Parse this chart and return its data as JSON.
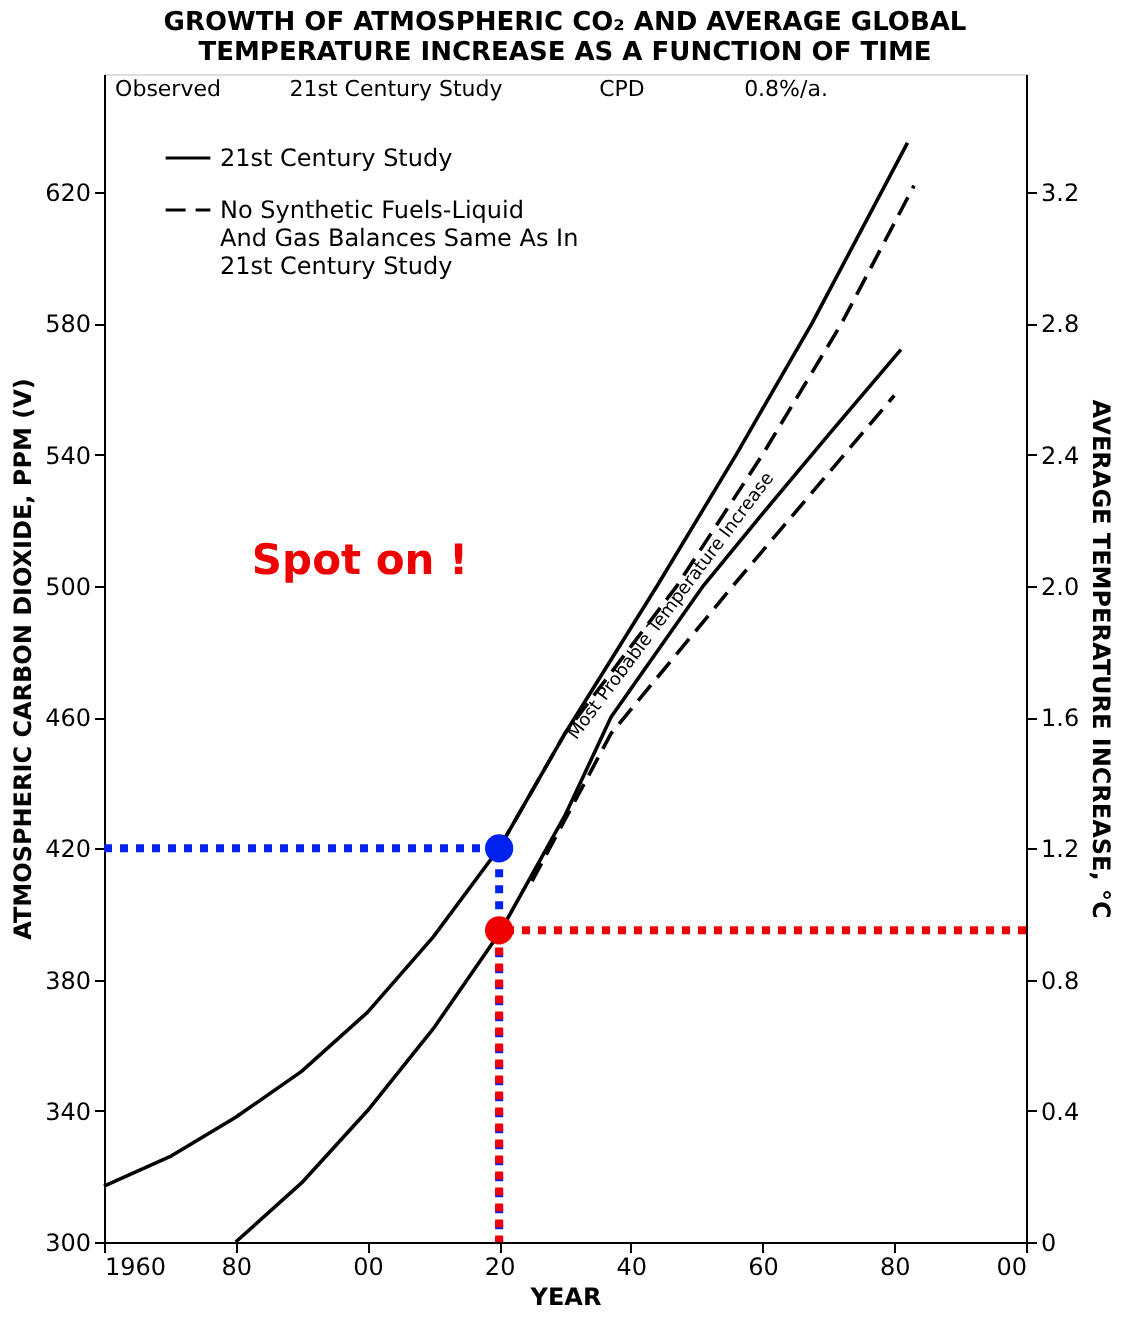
{
  "chart_data": {
    "type": "line",
    "title": "GROWTH OF ATMOSPHERIC CO₂ AND AVERAGE GLOBAL TEMPERATURE INCREASE AS A FUNCTION OF TIME",
    "xlabel": "YEAR",
    "ylabel": "ATMOSPHERIC CARBON DIOXIDE, PPM (V)",
    "y2label": "AVERAGE TEMPERATURE INCREASE, °C",
    "xlim": [
      1960,
      2100
    ],
    "xticks": [
      {
        "value": 1960,
        "label": "1960"
      },
      {
        "value": 1980,
        "label": "80"
      },
      {
        "value": 2000,
        "label": "00"
      },
      {
        "value": 2020,
        "label": "20"
      },
      {
        "value": 2040,
        "label": "40"
      },
      {
        "value": 2060,
        "label": "60"
      },
      {
        "value": 2080,
        "label": "80"
      },
      {
        "value": 2100,
        "label": "00"
      }
    ],
    "ylim": [
      300,
      656
    ],
    "yticks": [
      300,
      340,
      380,
      420,
      460,
      500,
      540,
      580,
      620
    ],
    "y2lim": [
      0,
      3.56
    ],
    "y2ticks": [
      {
        "value": 0,
        "label": "0"
      },
      {
        "value": 0.4,
        "label": "0.4"
      },
      {
        "value": 0.8,
        "label": "0.8"
      },
      {
        "value": 1.2,
        "label": "1.2"
      },
      {
        "value": 1.6,
        "label": "1.6"
      },
      {
        "value": 2.0,
        "label": "2.0"
      },
      {
        "value": 2.4,
        "label": "2.4"
      },
      {
        "value": 2.8,
        "label": "2.8"
      },
      {
        "value": 3.2,
        "label": "3.2"
      }
    ],
    "grid": false,
    "legend": "top left",
    "series": [
      {
        "name": "21st Century Study",
        "color": "#000000",
        "line_style": "solid",
        "x": [
          1960,
          1970,
          1980,
          1990,
          2000,
          2010,
          2020,
          2030,
          2044,
          2056,
          2067.5,
          2082
        ],
        "values": [
          317,
          326,
          338,
          352,
          370,
          393,
          420,
          455,
          500,
          540,
          580,
          635
        ]
      },
      {
        "name": "No Synthetic Fuels-Liquid And Gas Balances Same As In 21st Century Study",
        "color": "#000000",
        "line_style": "dashed",
        "x": [
          2020,
          2030,
          2047,
          2060,
          2072,
          2083
        ],
        "values": [
          420,
          455,
          500,
          540,
          580,
          622
        ]
      },
      {
        "color": "#000000",
        "line_style": "solid",
        "axis": "y2",
        "x": [
          1980,
          1990,
          2000,
          2010,
          2020,
          2030,
          2037,
          2051,
          2060,
          2070,
          2081
        ],
        "values": [
          0,
          0.18,
          0.4,
          0.65,
          0.94,
          1.3,
          1.6,
          2.0,
          2.22,
          2.46,
          2.72
        ]
      },
      {
        "color": "#000000",
        "line_style": "dashed",
        "axis": "y2",
        "x": [
          2025,
          2037,
          2055.5,
          2080
        ],
        "values": [
          1.1,
          1.55,
          2.0,
          2.58
        ]
      },
      {
        "color": "#0022ee",
        "line_style": "dotted",
        "x": [
          1960,
          2020,
          2020
        ],
        "values": [
          420,
          420,
          300
        ]
      },
      {
        "color": "#ee0000",
        "line_style": "dotted",
        "axis": "y2",
        "x": [
          2100,
          2020,
          2020
        ],
        "values": [
          0.95,
          0.95,
          0
        ]
      },
      {
        "type": "scatter",
        "marker": "circle",
        "color": "#0022ee",
        "x": [
          2020
        ],
        "values": [
          420
        ]
      },
      {
        "type": "scatter",
        "marker": "circle",
        "color": "#ee0000",
        "axis": "y2",
        "x": [
          2020
        ],
        "values": [
          0.95
        ]
      }
    ],
    "annotations": [
      "Observed",
      "21st Century Study",
      "CPD",
      "0.8%/a.",
      "Spot on !",
      {
        "text": "Most Probable Temperature Increase",
        "x": 2046,
        "y": 494
      }
    ]
  }
}
